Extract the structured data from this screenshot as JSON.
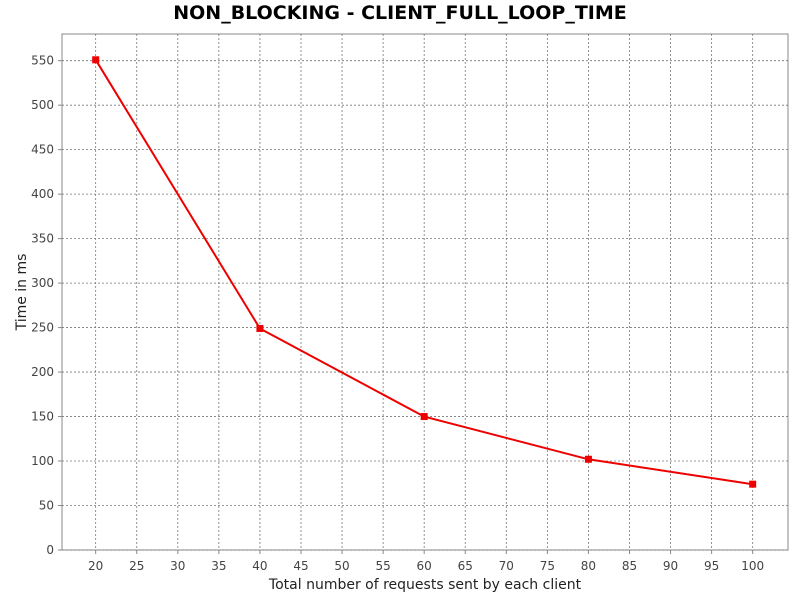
{
  "chart_data": {
    "type": "line",
    "title": "NON_BLOCKING - CLIENT_FULL_LOOP_TIME",
    "xlabel": "Total number of requests sent by each client",
    "ylabel": "Time in ms",
    "x_ticks": [
      20,
      25,
      30,
      35,
      40,
      45,
      50,
      55,
      60,
      65,
      70,
      75,
      80,
      85,
      90,
      95,
      100
    ],
    "y_ticks": [
      0,
      50,
      100,
      150,
      200,
      250,
      300,
      350,
      400,
      450,
      500,
      550
    ],
    "xlim": [
      15.9,
      104.3
    ],
    "ylim": [
      0,
      580
    ],
    "grid": true,
    "legend": "none",
    "series": [
      {
        "color": "#ee0000",
        "marker": "square",
        "x": [
          20,
          40,
          60,
          80,
          100
        ],
        "y": [
          551,
          249,
          150,
          102,
          74
        ]
      }
    ]
  }
}
